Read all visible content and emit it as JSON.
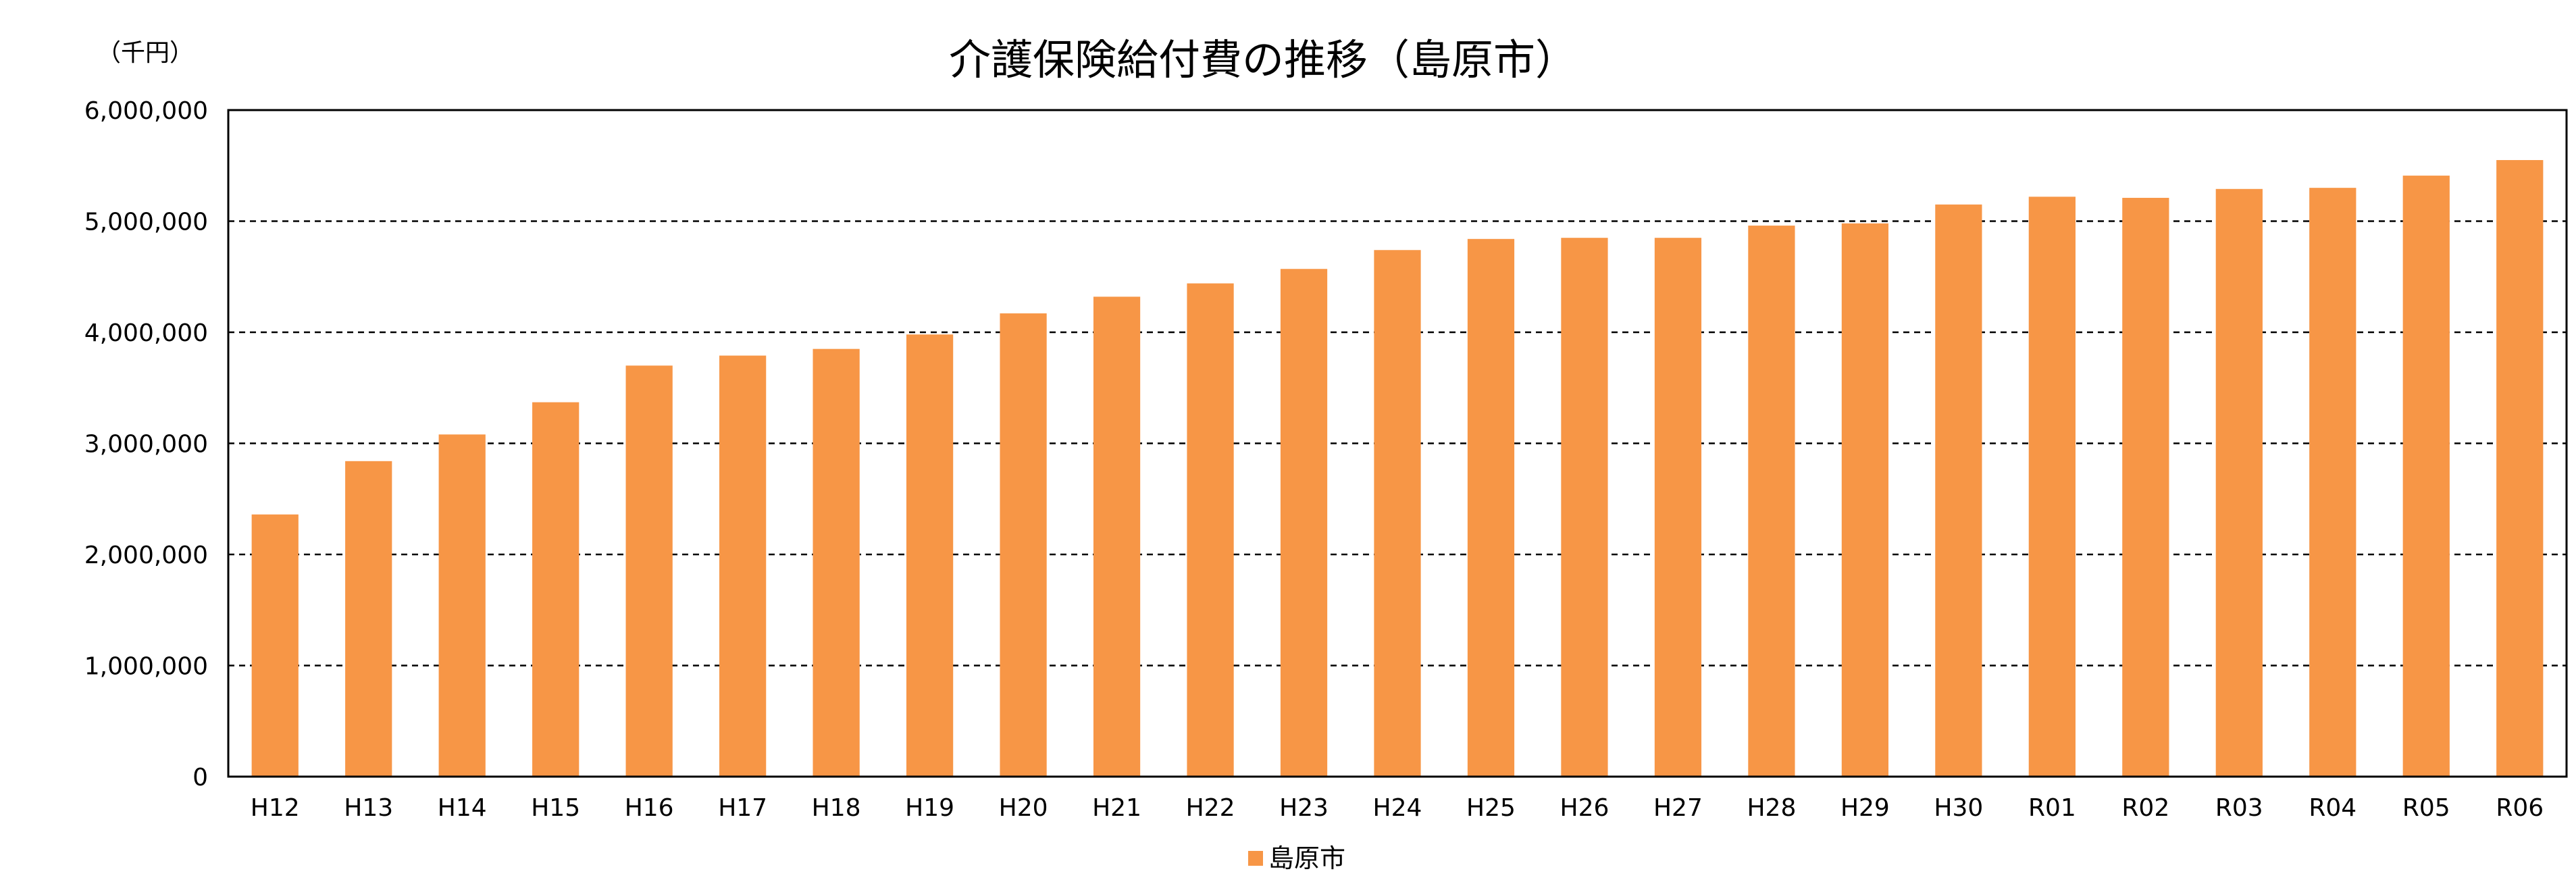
{
  "chart_data": {
    "type": "bar",
    "title": "介護保険給付費の推移（島原市）",
    "unit_label": "（千円）",
    "xlabel": "",
    "ylabel": "",
    "categories": [
      "H12",
      "H13",
      "H14",
      "H15",
      "H16",
      "H17",
      "H18",
      "H19",
      "H20",
      "H21",
      "H22",
      "H23",
      "H24",
      "H25",
      "H26",
      "H27",
      "H28",
      "H29",
      "H30",
      "R01",
      "R02",
      "R03",
      "R04",
      "R05",
      "R06"
    ],
    "series": [
      {
        "name": "島原市",
        "color": "#F79646",
        "values": [
          2360000,
          2840000,
          3080000,
          3370000,
          3700000,
          3790000,
          3850000,
          3980000,
          4170000,
          4320000,
          4440000,
          4570000,
          4740000,
          4840000,
          4850000,
          4850000,
          4960000,
          4980000,
          5150000,
          5220000,
          5210000,
          5290000,
          5300000,
          5410000,
          5550000
        ]
      }
    ],
    "ylim": [
      0,
      6000000
    ],
    "yticks": [
      0,
      1000000,
      2000000,
      3000000,
      4000000,
      5000000,
      6000000
    ],
    "ytick_labels": [
      "0",
      "1,000,000",
      "2,000,000",
      "3,000,000",
      "4,000,000",
      "5,000,000",
      "6,000,000"
    ],
    "grid": "horizontal dashed",
    "legend_position": "bottom"
  }
}
